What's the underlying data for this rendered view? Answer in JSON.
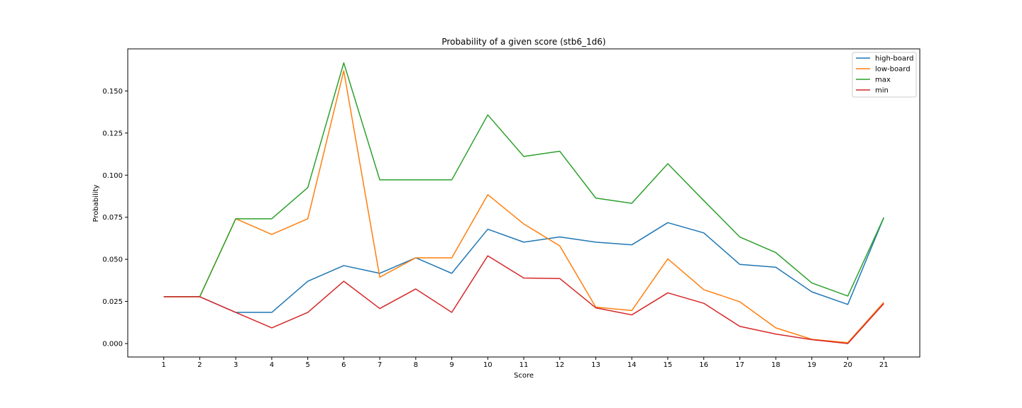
{
  "chart_data": {
    "type": "line",
    "title": "Probability of a given score (stb6_1d6)",
    "xlabel": "Score",
    "ylabel": "Probability",
    "x": [
      1,
      2,
      3,
      4,
      5,
      6,
      7,
      8,
      9,
      10,
      11,
      12,
      13,
      14,
      15,
      16,
      17,
      18,
      19,
      20,
      21
    ],
    "xlim": [
      0,
      22
    ],
    "ylim": [
      -0.008,
      0.175
    ],
    "yticks": [
      "0.000",
      "0.025",
      "0.050",
      "0.075",
      "0.100",
      "0.125",
      "0.150"
    ],
    "grid": false,
    "legend_position": "top-right",
    "series": [
      {
        "name": "high-board",
        "color": "#1f77b4",
        "values": [
          0.0278,
          0.0278,
          0.0185,
          0.0185,
          0.037,
          0.0463,
          0.0417,
          0.0509,
          0.0417,
          0.0679,
          0.0602,
          0.0633,
          0.0602,
          0.0586,
          0.0718,
          0.0657,
          0.047,
          0.0453,
          0.0307,
          0.0232,
          0.0748
        ]
      },
      {
        "name": "low-board",
        "color": "#ff7f0e",
        "values": [
          0.0278,
          0.0278,
          0.0741,
          0.0648,
          0.0741,
          0.162,
          0.0394,
          0.0509,
          0.0509,
          0.0884,
          0.071,
          0.058,
          0.0216,
          0.0196,
          0.0503,
          0.032,
          0.0248,
          0.0093,
          0.0025,
          0.0005,
          0.0245
        ]
      },
      {
        "name": "max",
        "color": "#2ca02c",
        "values": [
          0.0278,
          0.0278,
          0.0741,
          0.0741,
          0.0926,
          0.1667,
          0.0972,
          0.0972,
          0.0972,
          0.1358,
          0.1111,
          0.1142,
          0.0864,
          0.0833,
          0.1068,
          0.0849,
          0.0633,
          0.054,
          0.036,
          0.0282,
          0.0748
        ]
      },
      {
        "name": "min",
        "color": "#d62728",
        "values": [
          0.0278,
          0.0278,
          0.0185,
          0.0093,
          0.0185,
          0.037,
          0.0208,
          0.0324,
          0.0185,
          0.0521,
          0.0389,
          0.0386,
          0.0212,
          0.017,
          0.0301,
          0.0239,
          0.0102,
          0.0056,
          0.0023,
          0.0,
          0.0237
        ]
      }
    ]
  }
}
